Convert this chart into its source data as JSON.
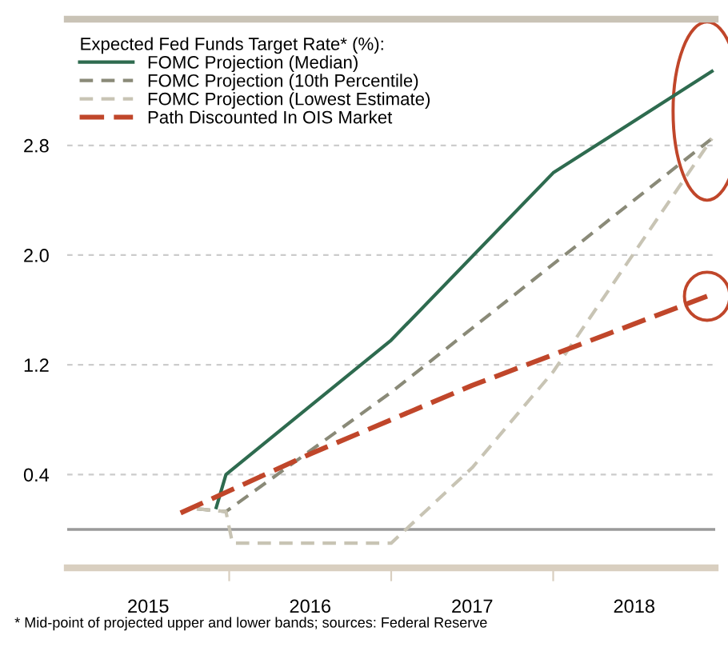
{
  "chart_data": {
    "type": "line",
    "legend_title": "Expected Fed Funds Target Rate* (%):",
    "legend": "top left",
    "grid": "y",
    "xlim": [
      2015,
      2019
    ],
    "xticks": [
      {
        "value": 2015.5,
        "label": "2015"
      },
      {
        "value": 2016,
        "label": null
      },
      {
        "value": 2016.5,
        "label": "2016"
      },
      {
        "value": 2017,
        "label": null
      },
      {
        "value": 2017.5,
        "label": "2017"
      },
      {
        "value": 2018,
        "label": null
      },
      {
        "value": 2018.5,
        "label": "2018"
      }
    ],
    "ylim": [
      -0.28,
      3.72
    ],
    "yticks": [
      0.4,
      1.2,
      {
        "value": 2.0,
        "label": "2.0"
      },
      2.8
    ],
    "ref_lines": [
      {
        "axis": "y",
        "value": 0,
        "color": "#9a9a9a",
        "line_style": "solid"
      }
    ],
    "series": [
      {
        "name": "FOMC Projection (Median)",
        "color": "#2e6b4f",
        "line_style": "solid",
        "x": [
          2015.92,
          2015.98,
          2017.0,
          2018.0,
          2018.98
        ],
        "values": [
          0.16,
          0.4,
          1.38,
          2.6,
          3.34
        ]
      },
      {
        "name": "FOMC Projection (10th Percentile)",
        "color": "#8a8a78",
        "line_style": "dashed",
        "x": [
          2015.8,
          2015.98,
          2017.0,
          2018.98
        ],
        "values": [
          0.15,
          0.13,
          1.0,
          2.85
        ]
      },
      {
        "name": "FOMC Projection (Lowest Estimate)",
        "color": "#c8c4b4",
        "line_style": "dashed",
        "x": [
          2015.8,
          2015.98,
          2016.02,
          2017.0,
          2017.5,
          2018.0,
          2018.98
        ],
        "values": [
          0.15,
          0.13,
          -0.1,
          -0.1,
          0.45,
          1.15,
          2.85
        ]
      },
      {
        "name": "Path Discounted In OIS Market",
        "color": "#c0462a",
        "line_style": "dashed",
        "x": [
          2015.7,
          2016.5,
          2017.5,
          2018.95
        ],
        "values": [
          0.12,
          0.55,
          1.05,
          1.7
        ]
      }
    ],
    "annotations": [
      "* Mid-point of projected upper and lower bands; sources: Federal Reserve"
    ]
  }
}
